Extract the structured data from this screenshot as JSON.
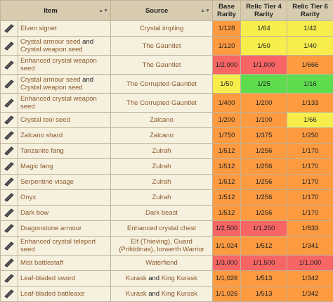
{
  "table": {
    "header": [
      "Item",
      "Source",
      "Base Rarity",
      "Relic Tier 4 Rarity",
      "Relic Tier 6 Rarity"
    ],
    "rows": [
      {
        "item": [
          "Elven signet"
        ],
        "source": [
          "Crystal impling"
        ],
        "base": "1/128",
        "tier4": "1/64",
        "tier6": "1/42",
        "colors": [
          "#fe9a40",
          "#f7ee4e",
          "#f7ee4e"
        ]
      },
      {
        "item": [
          "Crystal armour seed",
          "and",
          "Crystal weapon seed"
        ],
        "source": [
          "The Gauntlet"
        ],
        "base": "1/120",
        "tier4": "1/60",
        "tier6": "1/40",
        "colors": [
          "#fe9a40",
          "#f7ee4e",
          "#f7ee4e"
        ]
      },
      {
        "item": [
          "Enhanced crystal weapon seed"
        ],
        "source": [
          "The Gauntlet"
        ],
        "base": "1/2,000",
        "tier4": "1/1,000",
        "tier6": "1/666",
        "colors": [
          "#f86565",
          "#f86565",
          "#fe9a40"
        ]
      },
      {
        "item": [
          "Crystal armour seed",
          "and",
          "Crystal weapon seed"
        ],
        "source": [
          "The Corrupted Gauntlet"
        ],
        "base": "1/50",
        "tier4": "1/25",
        "tier6": "1/16",
        "colors": [
          "#f7ee4e",
          "#5fdc4e",
          "#5fdc4e"
        ]
      },
      {
        "item": [
          "Enhanced crystal weapon seed"
        ],
        "source": [
          "The Corrupted Gauntlet"
        ],
        "base": "1/400",
        "tier4": "1/200",
        "tier6": "1/133",
        "colors": [
          "#fe9a40",
          "#fe9a40",
          "#fe9a40"
        ]
      },
      {
        "item": [
          "Crystal tool seed"
        ],
        "source": [
          "Zalcano"
        ],
        "base": "1/200",
        "tier4": "1/100",
        "tier6": "1/66",
        "colors": [
          "#fe9a40",
          "#fe9a40",
          "#f7ee4e"
        ]
      },
      {
        "item": [
          "Zalcano shard"
        ],
        "source": [
          "Zalcano"
        ],
        "base": "1/750",
        "tier4": "1/375",
        "tier6": "1/250",
        "colors": [
          "#fe9a40",
          "#fe9a40",
          "#fe9a40"
        ]
      },
      {
        "item": [
          "Tanzanite fang"
        ],
        "source": [
          "Zulrah"
        ],
        "base": "1/512",
        "tier4": "1/256",
        "tier6": "1/170",
        "colors": [
          "#fe9a40",
          "#fe9a40",
          "#fe9a40"
        ]
      },
      {
        "item": [
          "Magic fang"
        ],
        "source": [
          "Zulrah"
        ],
        "base": "1/512",
        "tier4": "1/256",
        "tier6": "1/170",
        "colors": [
          "#fe9a40",
          "#fe9a40",
          "#fe9a40"
        ]
      },
      {
        "item": [
          "Serpentine visage"
        ],
        "source": [
          "Zulrah"
        ],
        "base": "1/512",
        "tier4": "1/256",
        "tier6": "1/170",
        "colors": [
          "#fe9a40",
          "#fe9a40",
          "#fe9a40"
        ]
      },
      {
        "item": [
          "Onyx"
        ],
        "source": [
          "Zulrah"
        ],
        "base": "1/512",
        "tier4": "1/256",
        "tier6": "1/170",
        "colors": [
          "#fe9a40",
          "#fe9a40",
          "#fe9a40"
        ]
      },
      {
        "item": [
          "Dark bow"
        ],
        "source": [
          "Dark beast"
        ],
        "base": "1/512",
        "tier4": "1/256",
        "tier6": "1/170",
        "colors": [
          "#fe9a40",
          "#fe9a40",
          "#fe9a40"
        ]
      },
      {
        "item": [
          "Dragonstone armour"
        ],
        "source": [
          "Enhanced crystal chest"
        ],
        "base": "1/2,500",
        "tier4": "1/1,250",
        "tier6": "1/833",
        "colors": [
          "#f86565",
          "#f86565",
          "#fe9a40"
        ]
      },
      {
        "item": [
          "Enhanced crystal teleport seed"
        ],
        "source": [
          "Elf (Thieving), Guard (Prifddinas), Iorwerth Warrior"
        ],
        "base": "1/1,024",
        "tier4": "1/512",
        "tier6": "1/341",
        "colors": [
          "#fe9a40",
          "#fe9a40",
          "#fe9a40"
        ]
      },
      {
        "item": [
          "Mist battlestaff"
        ],
        "source": [
          "Waterfiend"
        ],
        "base": "1/3,000",
        "tier4": "1/1,500",
        "tier6": "1/1,000",
        "colors": [
          "#f86565",
          "#f86565",
          "#f86565"
        ]
      },
      {
        "item": [
          "Leaf-bladed sword"
        ],
        "source": [
          "Kurask",
          "and",
          "King Kurask"
        ],
        "base": "1/1,026",
        "tier4": "1/513",
        "tier6": "1/342",
        "colors": [
          "#fe9a40",
          "#fe9a40",
          "#fe9a40"
        ]
      },
      {
        "item": [
          "Leaf-bladed battleaxe"
        ],
        "source": [
          "Kurask",
          "and",
          "King Kurask"
        ],
        "base": "1/1,026",
        "tier4": "1/513",
        "tier6": "1/342",
        "colors": [
          "#fe9a40",
          "#fe9a40",
          "#fe9a40"
        ]
      }
    ]
  }
}
